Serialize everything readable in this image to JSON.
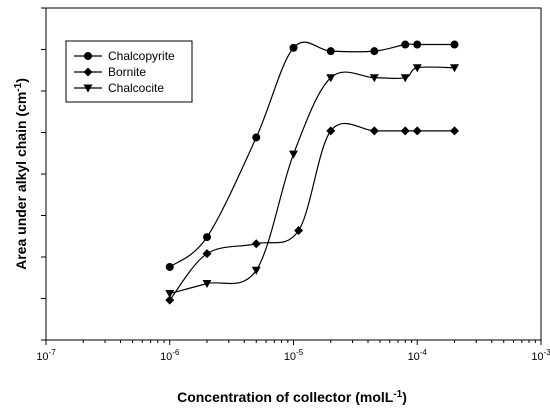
{
  "chart_data": {
    "type": "line",
    "x_scale": "log",
    "xlim": [
      1e-07,
      0.001
    ],
    "x_ticks": [
      {
        "base": "10",
        "exp": "-7",
        "value": 1e-07
      },
      {
        "base": "10",
        "exp": "-6",
        "value": 1e-06
      },
      {
        "base": "10",
        "exp": "-5",
        "value": 1e-05
      },
      {
        "base": "10",
        "exp": "-4",
        "value": 0.0001
      },
      {
        "base": "10",
        "exp": "-3",
        "value": 0.001
      }
    ],
    "y_tick_count": 8,
    "y_tick_labels": false,
    "xlabel": {
      "main": "Concentration of collector (molL",
      "sup": "-1",
      "tail": ")"
    },
    "ylabel": {
      "main": "Area under alkyl chain (cm",
      "sup": "-1",
      "tail": ")"
    },
    "grid": false,
    "legend_position": "top-left",
    "series": [
      {
        "name": "Chalcopyrite",
        "marker": "circle",
        "color": "#000000",
        "x": [
          1e-06,
          2e-06,
          5e-06,
          1e-05,
          2e-05,
          4.5e-05,
          8e-05,
          0.0001,
          0.0002
        ],
        "y": [
          0.22,
          0.31,
          0.61,
          0.88,
          0.87,
          0.87,
          0.89,
          0.89,
          0.89
        ]
      },
      {
        "name": "Bornite",
        "marker": "diamond",
        "color": "#000000",
        "x": [
          1e-06,
          2e-06,
          5e-06,
          1.1e-05,
          2e-05,
          4.5e-05,
          8e-05,
          0.0001,
          0.0002
        ],
        "y": [
          0.12,
          0.26,
          0.29,
          0.33,
          0.63,
          0.63,
          0.63,
          0.63,
          0.63
        ]
      },
      {
        "name": "Chalcocite",
        "marker": "triangle-down",
        "color": "#000000",
        "x": [
          1e-06,
          2e-06,
          5e-06,
          1e-05,
          2e-05,
          4.5e-05,
          8e-05,
          0.0001,
          0.0002
        ],
        "y": [
          0.14,
          0.17,
          0.21,
          0.56,
          0.79,
          0.79,
          0.79,
          0.82,
          0.82
        ]
      }
    ]
  }
}
